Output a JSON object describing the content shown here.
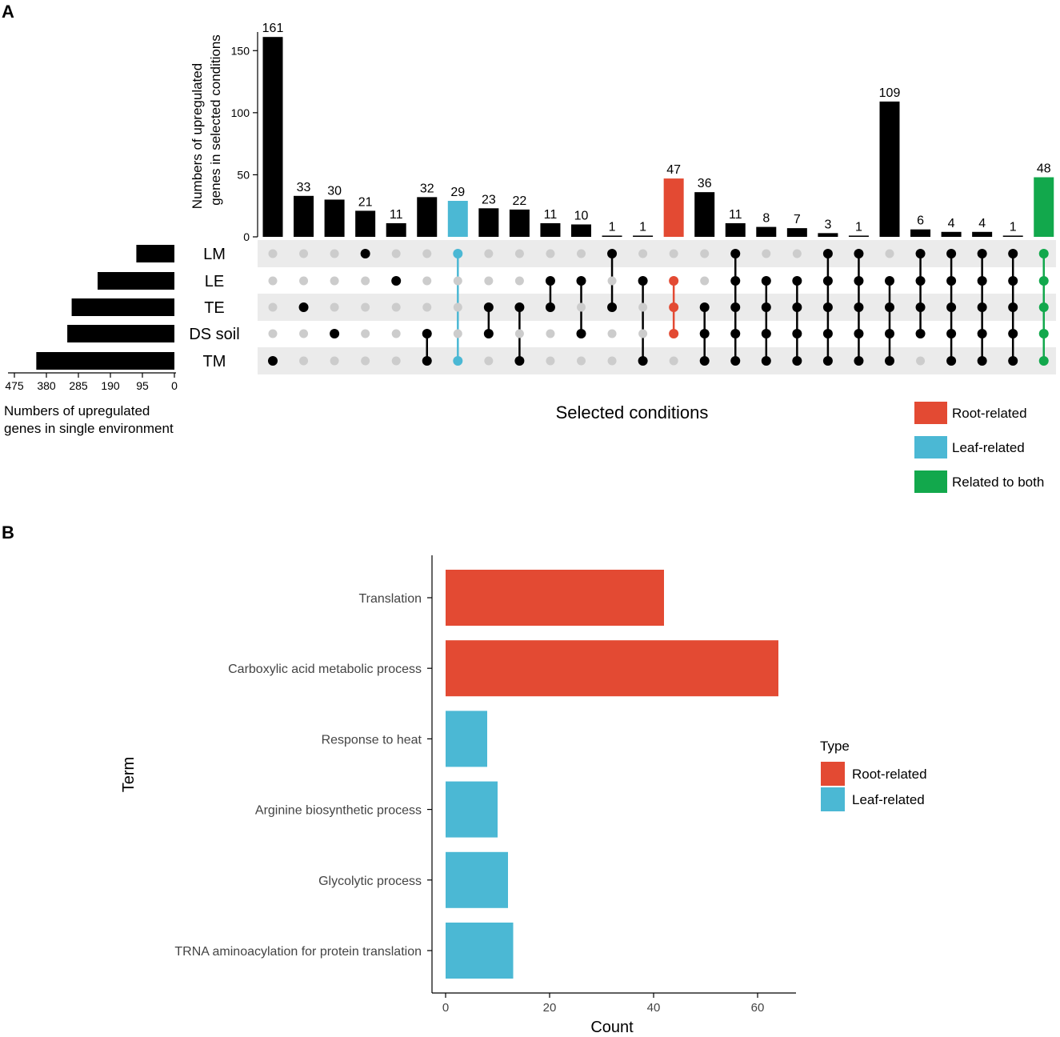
{
  "colors": {
    "root": "#E34A33",
    "leaf": "#4BB8D4",
    "both": "#12A84C",
    "black": "#000000",
    "grey_dot": "#CCCCCC",
    "band": "#EBEBEB"
  },
  "chart_data": [
    {
      "type": "bar",
      "panel_label": "A",
      "ylabel_line1": "Numbers of upregulated",
      "ylabel_line2": "genes in selected conditions",
      "xlabel": "Selected conditions",
      "ylim": [
        0,
        165
      ],
      "yticks": [
        0,
        50,
        100,
        150
      ],
      "ytick_labels": [
        "0",
        "50",
        "100",
        "150"
      ],
      "sets": [
        "LM",
        "LE",
        "TE",
        "DS soil",
        "TM"
      ],
      "values": [
        161,
        33,
        30,
        21,
        11,
        32,
        29,
        23,
        22,
        11,
        10,
        1,
        1,
        47,
        36,
        11,
        8,
        7,
        3,
        1,
        109,
        6,
        4,
        4,
        1,
        48
      ],
      "highlight": [
        "",
        "",
        "",
        "",
        "",
        "",
        "leaf",
        "",
        "",
        "",
        "",
        "",
        "",
        "root",
        "",
        "",
        "",
        "",
        "",
        "",
        "",
        "",
        "",
        "",
        "",
        "both"
      ],
      "membership": [
        [
          "TM"
        ],
        [
          "TE"
        ],
        [
          "DS soil"
        ],
        [
          "LM"
        ],
        [
          "LE"
        ],
        [
          "DS soil",
          "TM"
        ],
        [
          "LM",
          "TM"
        ],
        [
          "TE",
          "DS soil"
        ],
        [
          "TE",
          "TM"
        ],
        [
          "LE",
          "TE"
        ],
        [
          "LE",
          "DS soil"
        ],
        [
          "LM",
          "TE"
        ],
        [
          "LE",
          "TM"
        ],
        [
          "LE",
          "TE",
          "DS soil"
        ],
        [
          "TE",
          "DS soil",
          "TM"
        ],
        [
          "LM",
          "LE",
          "TE",
          "DS soil",
          "TM"
        ],
        [
          "LE",
          "TE",
          "DS soil",
          "TM"
        ],
        [
          "LE",
          "TE",
          "DS soil",
          "TM"
        ],
        [
          "LM",
          "LE",
          "TE",
          "DS soil",
          "TM"
        ],
        [
          "LM",
          "LE",
          "TE",
          "DS soil",
          "TM"
        ],
        [
          "LE",
          "TE",
          "DS soil",
          "TM"
        ],
        [
          "LM",
          "LE",
          "TE",
          "DS soil"
        ],
        [
          "LM",
          "LE",
          "TE",
          "DS soil",
          "TM"
        ],
        [
          "LM",
          "LE",
          "TE",
          "DS soil",
          "TM"
        ],
        [
          "LM",
          "LE",
          "TE",
          "DS soil",
          "TM"
        ],
        [
          "LM",
          "LE",
          "TE",
          "DS soil",
          "TM"
        ]
      ],
      "set_sizes": {
        "xlabel_line1": "Numbers of upregulated",
        "xlabel_line2": "genes in single environment",
        "xlim": [
          0,
          485
        ],
        "xticks": [
          475,
          380,
          285,
          190,
          95,
          0
        ],
        "xtick_labels": [
          "475",
          "380",
          "285",
          "190",
          "95",
          "0"
        ],
        "values": [
          113,
          228,
          305,
          318,
          410
        ]
      },
      "legend": {
        "position": "bottom-right",
        "entries": [
          {
            "label": "Root-related",
            "type": "root"
          },
          {
            "label": "Leaf-related",
            "type": "leaf"
          },
          {
            "label": "Related to both",
            "type": "both"
          }
        ]
      }
    },
    {
      "type": "bar",
      "orientation": "horizontal",
      "panel_label": "B",
      "xlabel": "Count",
      "ylabel": "Term",
      "xlim": [
        0,
        67
      ],
      "xticks": [
        0,
        20,
        40,
        60
      ],
      "xtick_labels": [
        "0",
        "20",
        "40",
        "60"
      ],
      "categories": [
        "Translation",
        "Carboxylic acid metabolic process",
        "Response to heat",
        "Arginine biosynthetic process",
        "Glycolytic process",
        "TRNA aminoacylation for protein translation"
      ],
      "values": [
        42,
        64,
        8,
        10,
        12,
        13
      ],
      "types": [
        "root",
        "root",
        "leaf",
        "leaf",
        "leaf",
        "leaf"
      ],
      "legend": {
        "title": "Type",
        "position": "right",
        "entries": [
          {
            "label": "Root-related",
            "type": "root"
          },
          {
            "label": "Leaf-related",
            "type": "leaf"
          }
        ]
      }
    }
  ]
}
